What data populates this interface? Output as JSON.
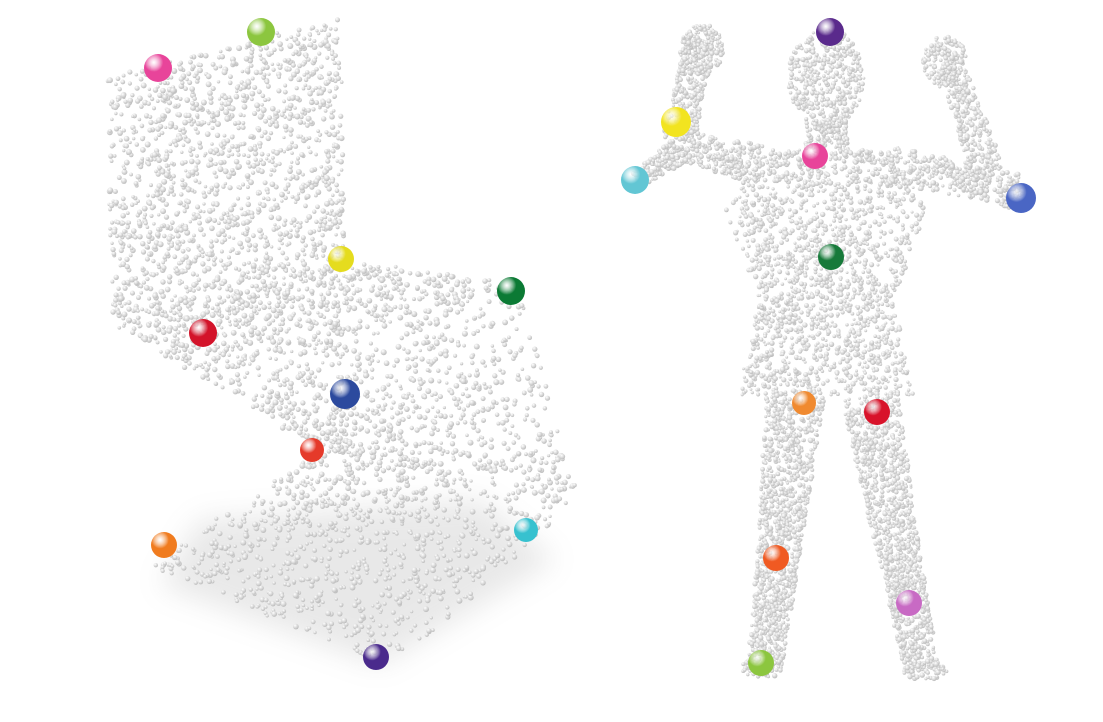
{
  "figures": [
    {
      "name": "chair-point-cloud",
      "keypoints": [
        {
          "name": "keypoint-top-left",
          "color": "#e8449a"
        },
        {
          "name": "keypoint-top-right",
          "color": "#8cc63f"
        },
        {
          "name": "keypoint-seat-front-center",
          "color": "#e5dc1e"
        },
        {
          "name": "keypoint-seat-back-right",
          "color": "#0b7a34"
        },
        {
          "name": "keypoint-seat-left",
          "color": "#d3132a"
        },
        {
          "name": "keypoint-seat-center",
          "color": "#2c4a9e"
        },
        {
          "name": "keypoint-leg-front",
          "color": "#e53a2a"
        },
        {
          "name": "keypoint-base-right",
          "color": "#37c1cf"
        },
        {
          "name": "keypoint-base-left",
          "color": "#f07b1e"
        },
        {
          "name": "keypoint-base-front",
          "color": "#4a2a8c"
        }
      ]
    },
    {
      "name": "human-point-cloud",
      "keypoints": [
        {
          "name": "keypoint-head",
          "color": "#5a2a8c"
        },
        {
          "name": "keypoint-right-wrist",
          "color": "#f2e420"
        },
        {
          "name": "keypoint-right-hand",
          "color": "#62c6d4"
        },
        {
          "name": "keypoint-chest",
          "color": "#e8449a"
        },
        {
          "name": "keypoint-left-hand",
          "color": "#4a66c4"
        },
        {
          "name": "keypoint-abdomen",
          "color": "#177a3a"
        },
        {
          "name": "keypoint-right-hip",
          "color": "#f08a30"
        },
        {
          "name": "keypoint-left-hip",
          "color": "#d8132a"
        },
        {
          "name": "keypoint-right-knee",
          "color": "#f05a22"
        },
        {
          "name": "keypoint-left-knee",
          "color": "#c86ac4"
        },
        {
          "name": "keypoint-right-foot",
          "color": "#8cc63f"
        }
      ]
    }
  ],
  "point_color": "#d6d6d6",
  "background": "#ffffff"
}
